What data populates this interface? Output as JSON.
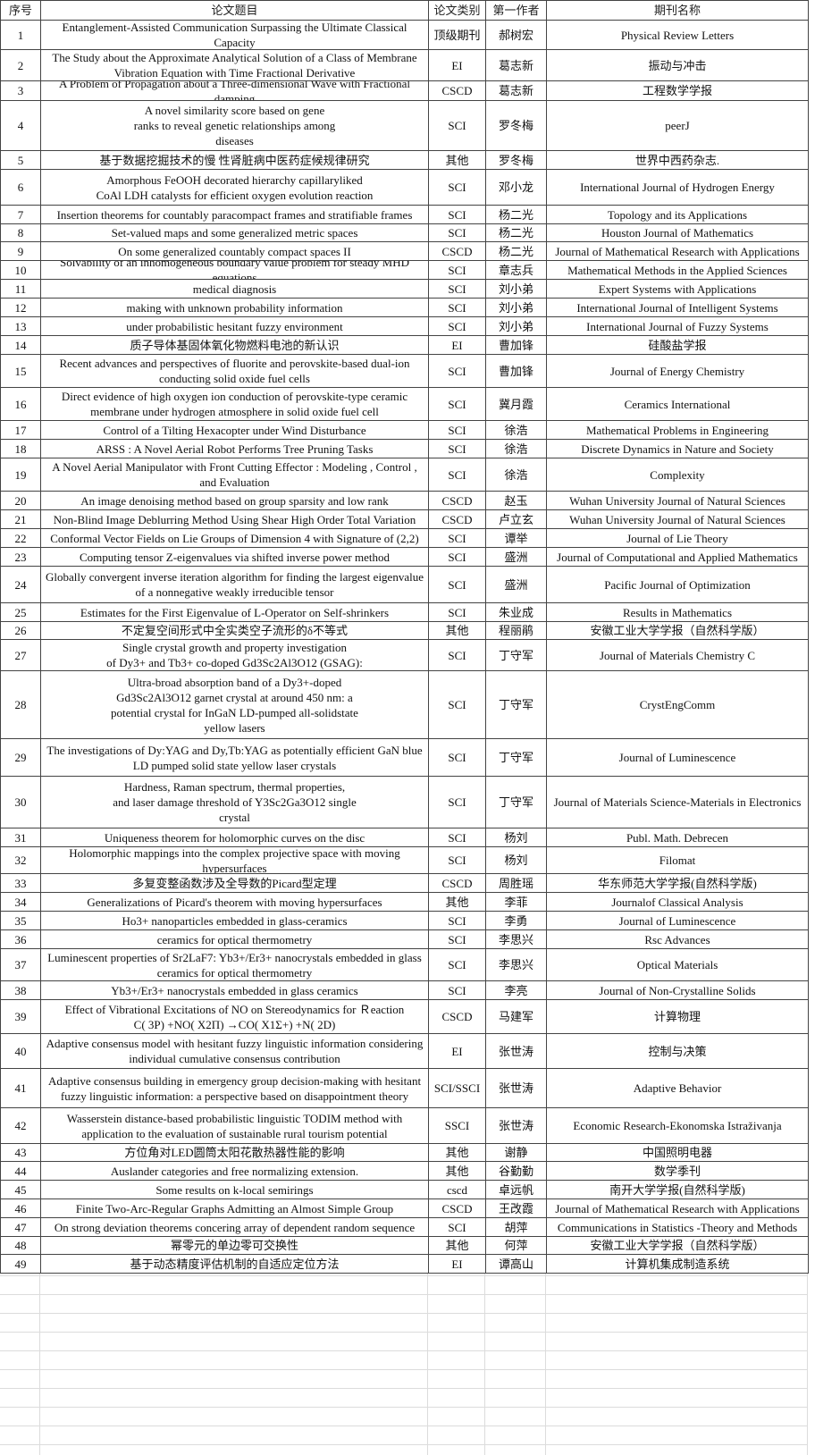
{
  "table": {
    "header": [
      "序号",
      "论文题目",
      "论文类别",
      "第一作者",
      "期刊名称"
    ],
    "rows": [
      [
        1,
        "Entanglement-Assisted Communication Surpassing the Ultimate Classical Capacity",
        "顶级期刊",
        "郝树宏",
        "Physical Review Letters"
      ],
      [
        2,
        "The Study about the Approximate Analytical Solution of a Class of Membrane Vibration Equation with Time Fractional Derivative",
        "EI",
        "葛志新",
        "振动与冲击"
      ],
      [
        3,
        "A Problem of Propagation about a Three-dimensional Wave with Fractional damping",
        "CSCD",
        "葛志新",
        "工程数学学报"
      ],
      [
        4,
        "A novel similarity score based on gene\nranks to reveal genetic relationships among\ndiseases",
        "SCI",
        "罗冬梅",
        "peerJ"
      ],
      [
        5,
        "基于数据挖掘技术的慢 性肾脏病中医药症候规律研究",
        "其他",
        "罗冬梅",
        "世界中西药杂志."
      ],
      [
        6,
        "Amorphous FeOOH decorated hierarchy capillaryliked\nCoAl LDH catalysts for efficient oxygen evolution reaction",
        "SCI",
        "邓小龙",
        "International Journal of Hydrogen Energy"
      ],
      [
        7,
        "Insertion theorems for countably paracompact frames and stratifiable frames",
        "SCI",
        "杨二光",
        "Topology and its Applications"
      ],
      [
        8,
        "Set-valued maps and some generalized metric spaces",
        "SCI",
        "杨二光",
        "Houston Journal of Mathematics"
      ],
      [
        9,
        "On some generalized countably compact spaces II",
        "CSCD",
        "杨二光",
        "Journal of Mathematical Research with Applications"
      ],
      [
        10,
        "Solvability of an inhomogeneous boundary value problem for steady MHD equations",
        "SCI",
        "章志兵",
        "Mathematical Methods in the Applied Sciences"
      ],
      [
        11,
        "medical diagnosis",
        "SCI",
        "刘小弟",
        "Expert Systems with Applications"
      ],
      [
        12,
        "making with unknown probability information",
        "SCI",
        "刘小弟",
        "International Journal of Intelligent Systems"
      ],
      [
        13,
        "under probabilistic hesitant fuzzy environment",
        "SCI",
        "刘小弟",
        "International Journal of Fuzzy Systems"
      ],
      [
        14,
        "质子导体基固体氧化物燃料电池的新认识",
        "EI",
        "曹加锋",
        "硅酸盐学报"
      ],
      [
        15,
        "Recent advances and perspectives of fluorite and perovskite-based dual-ion conducting solid oxide fuel cells",
        "SCI",
        "曹加锋",
        "Journal of Energy Chemistry"
      ],
      [
        16,
        "Direct evidence of high oxygen ion conduction of perovskite-type ceramic membrane under hydrogen atmosphere in solid oxide fuel cell",
        "SCI",
        "冀月霞",
        "Ceramics International"
      ],
      [
        17,
        "Control of a Tilting Hexacopter under Wind Disturbance",
        "SCI",
        "徐浩",
        "Mathematical Problems in Engineering"
      ],
      [
        18,
        "ARSS : A Novel Aerial Robot Performs Tree Pruning Tasks",
        "SCI",
        "徐浩",
        "Discrete Dynamics in Nature and Society"
      ],
      [
        19,
        "A Novel Aerial Manipulator with Front Cutting Effector : Modeling , Control , and Evaluation",
        "SCI",
        "徐浩",
        "Complexity"
      ],
      [
        20,
        "An image denoising method based on group sparsity and low rank",
        "CSCD",
        "赵玉",
        "Wuhan University Journal of Natural Sciences"
      ],
      [
        21,
        "Non-Blind Image Deblurring Method Using Shear High Order Total Variation",
        "CSCD",
        "卢立玄",
        "Wuhan University Journal of Natural Sciences"
      ],
      [
        22,
        "Conformal Vector Fields on Lie Groups of Dimension 4 with Signature of (2,2)",
        "SCI",
        "谭举",
        "Journal of Lie Theory"
      ],
      [
        23,
        "Computing tensor Z-eigenvalues via shifted inverse power method",
        "SCI",
        "盛洲",
        "Journal of Computational and Applied Mathematics"
      ],
      [
        24,
        "Globally convergent inverse iteration algorithm for finding the largest eigenvalue of a nonnegative weakly irreducible tensor",
        "SCI",
        "盛洲",
        "Pacific Journal of Optimization"
      ],
      [
        25,
        "Estimates for the First Eigenvalue of L-Operator on Self-shrinkers",
        "SCI",
        "朱业成",
        "Results in Mathematics"
      ],
      [
        26,
        "不定复空间形式中全实类空子流形的δ不等式",
        "其他",
        "程丽鹃",
        "安徽工业大学学报（自然科学版）"
      ],
      [
        27,
        "Single crystal growth and property investigation\nof Dy3+ and Tb3+ co-doped Gd3Sc2Al3O12 (GSAG):",
        "SCI",
        "丁守军",
        "Journal of Materials Chemistry C"
      ],
      [
        28,
        "Ultra-broad absorption band of a Dy3+-doped\nGd3Sc2Al3O12 garnet crystal at around 450 nm: a\npotential crystal for InGaN LD-pumped all-solidstate\nyellow lasers",
        "SCI",
        "丁守军",
        "CrystEngComm"
      ],
      [
        29,
        "The investigations of Dy:YAG and Dy,Tb:YAG as potentially efficient GaN blue LD pumped solid state yellow laser crystals",
        "SCI",
        "丁守军",
        "Journal of Luminescence"
      ],
      [
        30,
        "Hardness, Raman spectrum, thermal properties,\nand laser damage threshold of Y3Sc2Ga3O12 single\ncrystal",
        "SCI",
        "丁守军",
        "Journal of Materials Science-Materials in Electronics"
      ],
      [
        31,
        "Uniqueness theorem for holomorphic curves on the disc",
        "SCI",
        "杨刘",
        "Publ. Math. Debrecen"
      ],
      [
        32,
        "Holomorphic mappings into the complex projective space with moving hypersurfaces",
        "SCI",
        "杨刘",
        "Filomat"
      ],
      [
        33,
        "多复变整函数涉及全导数的Picard型定理",
        "CSCD",
        "周胜瑶",
        "华东师范大学学报(自然科学版)"
      ],
      [
        34,
        "Generalizations of Picard's theorem with moving hypersurfaces",
        "其他",
        "李菲",
        "Journalof Classical Analysis"
      ],
      [
        35,
        "Ho3+ nanoparticles embedded in glass-ceramics",
        "SCI",
        "李勇",
        "Journal of Luminescence"
      ],
      [
        36,
        "ceramics for optical thermometry",
        "SCI",
        "李思兴",
        "Rsc Advances"
      ],
      [
        37,
        "Luminescent properties of Sr2LaF7: Yb3+/Er3+ nanocrystals embedded in glass ceramics for optical thermometry",
        "SCI",
        "李思兴",
        "Optical Materials"
      ],
      [
        38,
        "Yb3+/Er3+ nanocrystals embedded in glass ceramics",
        "SCI",
        "李亮",
        "Journal of Non-Crystalline Solids"
      ],
      [
        39,
        "Effect of Vibrational Excitations of NO on Stereodynamics for Ｒeaction\nC( 3P) +NO( X2Π) →CO( X1Σ+) +N( 2D)",
        "CSCD",
        "马建军",
        "计算物理"
      ],
      [
        40,
        "Adaptive consensus model with hesitant fuzzy linguistic information considering individual cumulative consensus contribution",
        "EI",
        "张世涛",
        "控制与决策"
      ],
      [
        41,
        "Adaptive consensus building in emergency group decision-making with hesitant fuzzy linguistic information: a perspective based on disappointment theory",
        "SCI/SSCI",
        "张世涛",
        "Adaptive Behavior"
      ],
      [
        42,
        "Wasserstein distance-based probabilistic linguistic TODIM method with application to the evaluation of sustainable rural tourism potential",
        "SSCI",
        "张世涛",
        "Economic Research-Ekonomska Istraživanja"
      ],
      [
        43,
        "方位角对LED圆筒太阳花散热器性能的影响",
        "其他",
        "谢静",
        "中国照明电器"
      ],
      [
        44,
        "Auslander categories and free normalizing extension.",
        "其他",
        "谷勤勤",
        "数学季刊"
      ],
      [
        45,
        "Some results on k-local semirings",
        "cscd",
        "卓远帆",
        "南开大学学报(自然科学版)"
      ],
      [
        46,
        "Finite Two-Arc-Regular Graphs Admitting an Almost Simple Group",
        "CSCD",
        "王改霞",
        "Journal of Mathematical Research with Applications"
      ],
      [
        47,
        "On strong deviation theorems concering array of dependent random sequence",
        "SCI",
        "胡萍",
        "Communications in Statistics -Theory and Methods"
      ],
      [
        48,
        "幂零元的单边零可交换性",
        "其他",
        "何萍",
        "安徽工业大学学报（自然科学版）"
      ],
      [
        49,
        "基于动态精度评估机制的自适应定位方法",
        "EI",
        "谭高山",
        "计算机集成制造系统"
      ]
    ]
  }
}
